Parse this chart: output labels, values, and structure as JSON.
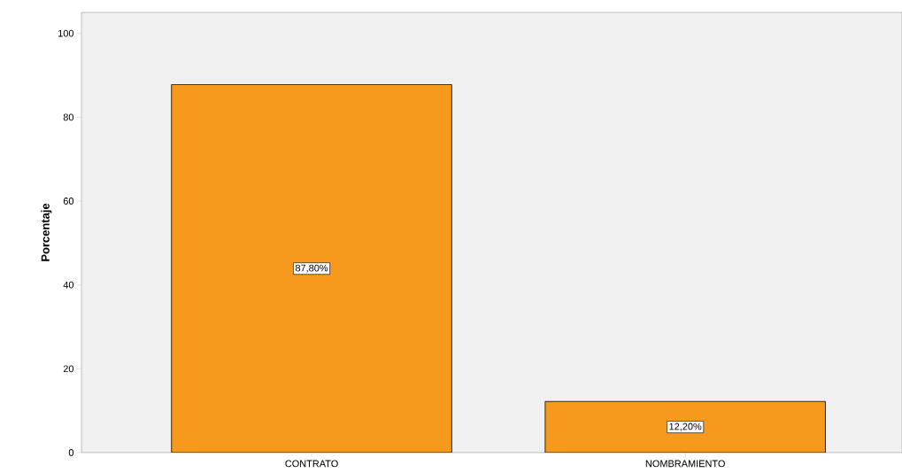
{
  "chart_data": {
    "type": "bar",
    "ylabel": "Porcentaje",
    "categories": [
      "CONTRATO",
      "NOMBRAMIENTO"
    ],
    "values": [
      87.8,
      12.2
    ],
    "color": "#f7991c",
    "value_labels": [
      "87,80%",
      "12,20%"
    ],
    "ylim": [
      0,
      105
    ],
    "yticks": [
      0,
      20,
      40,
      60,
      80,
      100
    ],
    "grid": false
  }
}
